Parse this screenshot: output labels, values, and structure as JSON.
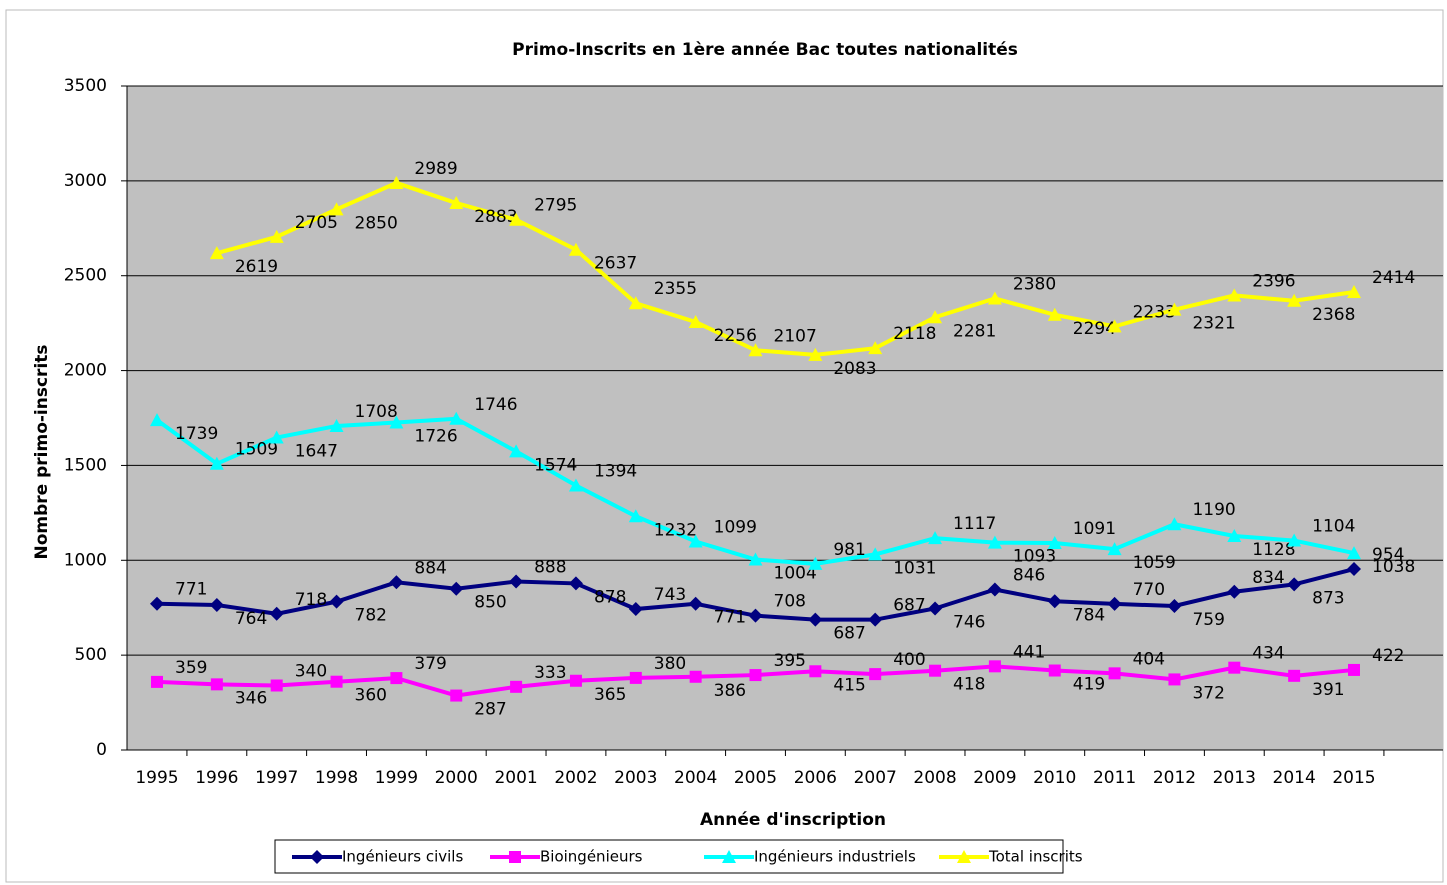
{
  "chart_data": {
    "type": "line",
    "title": "Primo-Inscrits en 1ère année Bac toutes nationalités",
    "x_label": "Année d'inscription",
    "y_label": "Nombre primo-inscrits",
    "categories": [
      "1995",
      "1996",
      "1997",
      "1998",
      "1999",
      "2000",
      "2001",
      "2002",
      "2003",
      "2004",
      "2005",
      "2006",
      "2007",
      "2008",
      "2009",
      "2010",
      "2011",
      "2012",
      "2013",
      "2014",
      "2015"
    ],
    "ylim": [
      0,
      3500
    ],
    "yticks": [
      0,
      500,
      1000,
      1500,
      2000,
      2500,
      3000,
      3500
    ],
    "grid": true,
    "legend": "bottom",
    "series": [
      {
        "name": "Ingénieurs civils",
        "color": "#000080",
        "marker": "diamond",
        "values": [
          771,
          764,
          718,
          782,
          884,
          850,
          888,
          878,
          743,
          771,
          708,
          687,
          687,
          746,
          846,
          784,
          770,
          759,
          834,
          873,
          954
        ]
      },
      {
        "name": "Bioingénieurs",
        "color": "#ff00ff",
        "marker": "square",
        "values": [
          359,
          346,
          340,
          360,
          379,
          287,
          333,
          365,
          380,
          386,
          395,
          415,
          400,
          418,
          441,
          419,
          404,
          372,
          434,
          391,
          422
        ]
      },
      {
        "name": "Ingénieurs industriels",
        "color": "#00ffff",
        "marker": "triangle",
        "values": [
          1739,
          1509,
          1647,
          1708,
          1726,
          1746,
          1574,
          1394,
          1232,
          1099,
          1004,
          981,
          1031,
          1117,
          1093,
          1091,
          1059,
          1190,
          1128,
          1104,
          1038
        ]
      },
      {
        "name": "Total inscrits",
        "color": "#ffff00",
        "marker": "triangle",
        "values": [
          null,
          2619,
          2705,
          2850,
          2989,
          2883,
          2795,
          2637,
          2355,
          2256,
          2107,
          2083,
          2118,
          2281,
          2380,
          2294,
          2233,
          2321,
          2396,
          2368,
          2414
        ]
      }
    ]
  }
}
